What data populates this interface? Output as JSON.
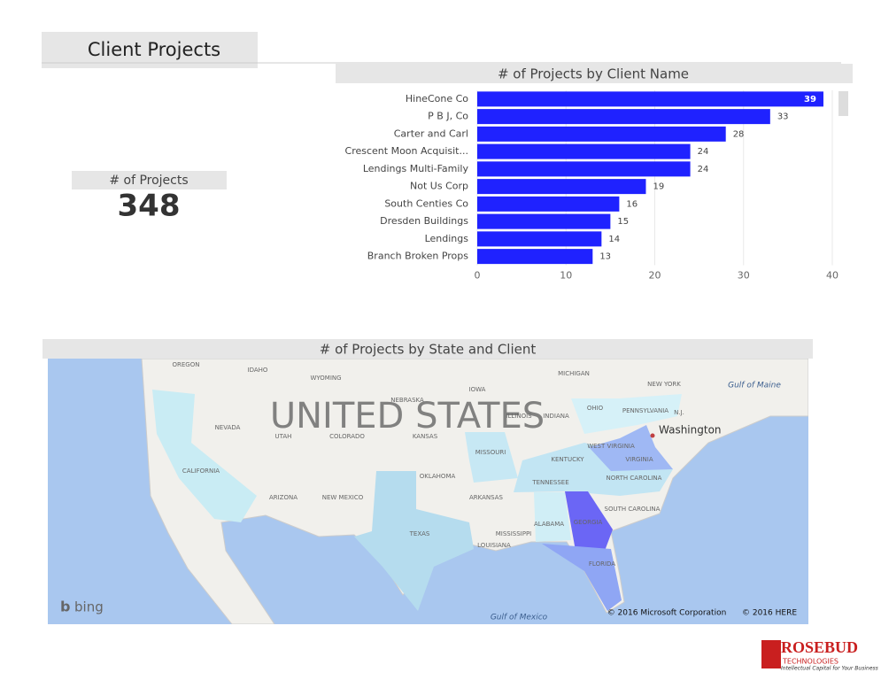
{
  "header": {
    "title": "Client Projects"
  },
  "card": {
    "label": "# of Projects",
    "value": "348"
  },
  "chart_data": {
    "type": "hbar",
    "title": "# of Projects by Client Name",
    "categories": [
      "HineCone Co",
      "P B J, Co",
      "Carter and Carl",
      "Crescent Moon Acquisit...",
      "Lendings Multi-Family",
      "Not Us Corp",
      "South Centies Co",
      "Dresden Buildings",
      "Lendings",
      "Branch Broken Props"
    ],
    "values": [
      39,
      33,
      28,
      24,
      24,
      19,
      16,
      15,
      14,
      13
    ],
    "color": "#1f22ff",
    "xlim": [
      0,
      40
    ],
    "xticks": [
      0,
      10,
      20,
      30,
      40
    ],
    "grid": true
  },
  "map": {
    "title": "# of Projects by State and Client",
    "country": "UNITED STATES",
    "labels": [
      "OREGON",
      "IDAHO",
      "WYOMING",
      "NEBRASKA",
      "IOWA",
      "MICHIGAN",
      "NEW YORK",
      "NEVADA",
      "UTAH",
      "COLORADO",
      "KANSAS",
      "ILLINOIS",
      "INDIANA",
      "OHIO",
      "PENNSYLVANIA",
      "N.J.",
      "CALIFORNIA",
      "MISSOURI",
      "WEST VIRGINIA",
      "KENTUCKY",
      "VIRGINIA",
      "OKLAHOMA",
      "TENNESSEE",
      "NORTH CAROLINA",
      "ARIZONA",
      "NEW MEXICO",
      "ARKANSAS",
      "SOUTH CAROLINA",
      "ALABAMA",
      "GEORGIA",
      "MISSISSIPPI",
      "TEXAS",
      "LOUISIANA",
      "FLORIDA"
    ],
    "city": "Washington",
    "water": [
      "Gulf of Maine",
      "Gulf of Mexico"
    ],
    "provider": "bing",
    "copyright": [
      "© 2016 Microsoft Corporation",
      "© 2016 HERE"
    ]
  },
  "logo": {
    "name": "ROSEBUD",
    "sub": "TECHNOLOGIES",
    "tagline": "Intellectual Capital for Your Business"
  }
}
